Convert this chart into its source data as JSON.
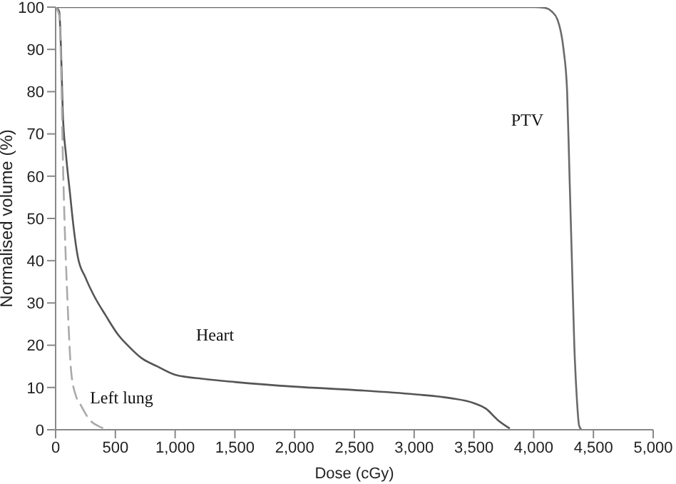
{
  "chart_data": {
    "type": "line",
    "xlabel": "Dose (cGy)",
    "ylabel": "Normalised volume (%)",
    "xlim": [
      0,
      5000
    ],
    "xticks": [
      0,
      500,
      {
        "value": 1000,
        "label": "1,000"
      },
      {
        "value": 1500,
        "label": "1,500"
      },
      {
        "value": 2000,
        "label": "2,000"
      },
      {
        "value": 2500,
        "label": "2,500"
      },
      {
        "value": 3000,
        "label": "3,000"
      },
      {
        "value": 3500,
        "label": "3,500"
      },
      {
        "value": 4000,
        "label": "4,000"
      },
      {
        "value": 4500,
        "label": "4,500"
      },
      {
        "value": 5000,
        "label": "5,000"
      }
    ],
    "ylim": [
      0,
      100
    ],
    "yticks": [
      0,
      10,
      20,
      30,
      40,
      50,
      60,
      70,
      80,
      90,
      100
    ],
    "grid": false,
    "legend": false,
    "marker": "none",
    "series": [
      {
        "name": "PTV",
        "color": "#6a6a6a",
        "line_style": "solid",
        "x": [
          0,
          3900,
          4000,
          4100,
          4150,
          4200,
          4250,
          4280,
          4300,
          4320,
          4340,
          4360,
          4380,
          4400
        ],
        "values": [
          100,
          100,
          100,
          99.8,
          99,
          97,
          90,
          80,
          60,
          40,
          20,
          8,
          1,
          0
        ]
      },
      {
        "name": "Heart",
        "color": "#555555",
        "line_style": "solid",
        "x": [
          0,
          30,
          45,
          60,
          87,
          120,
          150,
          185,
          250,
          325,
          420,
          520,
          620,
          717,
          850,
          1000,
          1250,
          1500,
          2000,
          2500,
          3000,
          3300,
          3500,
          3600,
          3700,
          3800
        ],
        "values": [
          100,
          99,
          90,
          75,
          65,
          56,
          48,
          41,
          36,
          31.5,
          27,
          22.6,
          19.5,
          17,
          15,
          13,
          12,
          11.3,
          10.2,
          9.4,
          8.4,
          7.5,
          6.3,
          5,
          2.3,
          0.3
        ]
      },
      {
        "name": "Left lung",
        "color": "#aaaaaa",
        "line_style": "dashed",
        "x": [
          0,
          30,
          50,
          60,
          75,
          100,
          131,
          170,
          211,
          280,
          370,
          450
        ],
        "values": [
          100,
          98,
          80,
          65,
          49,
          30,
          13.5,
          8,
          5.8,
          2.5,
          0.7,
          0
        ]
      }
    ]
  }
}
